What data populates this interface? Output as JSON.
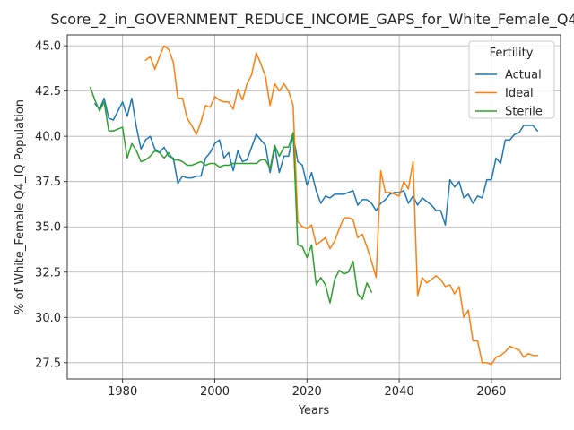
{
  "chart_data": {
    "type": "line",
    "title": "Score_2_in_GOVERNMENT_REDUCE_INCOME_GAPS_for_White_Female_Q4",
    "xlabel": "Years",
    "ylabel": "% of White_Female Q4_IQ Population",
    "xlim": [
      1968,
      2075
    ],
    "ylim": [
      26.6,
      45.6
    ],
    "xticks": [
      1980,
      2000,
      2020,
      2040,
      2060
    ],
    "yticks": [
      27.5,
      30.0,
      32.5,
      35.0,
      37.5,
      40.0,
      42.5,
      45.0
    ],
    "xtick_labels": [
      "1980",
      "2000",
      "2020",
      "2040",
      "2060"
    ],
    "ytick_labels": [
      "27.5",
      "30.0",
      "32.5",
      "35.0",
      "37.5",
      "40.0",
      "42.5",
      "45.0"
    ],
    "grid": true,
    "legend": {
      "title": "Fertility",
      "placement": "top-right"
    },
    "series": [
      {
        "name": "Actual",
        "color": "#1f77b4",
        "x": [
          1974,
          1975,
          1976,
          1977,
          1978,
          1979,
          1980,
          1981,
          1982,
          1983,
          1984,
          1985,
          1986,
          1987,
          1988,
          1989,
          1990,
          1991,
          1992,
          1993,
          1994,
          1995,
          1996,
          1997,
          1998,
          1999,
          2000,
          2001,
          2002,
          2003,
          2004,
          2005,
          2006,
          2007,
          2008,
          2009,
          2010,
          2011,
          2012,
          2013,
          2014,
          2015,
          2016,
          2017,
          2018,
          2019,
          2020,
          2021,
          2022,
          2023,
          2024,
          2025,
          2026,
          2027,
          2028,
          2029,
          2030,
          2031,
          2032,
          2033,
          2034,
          2035,
          2036,
          2037,
          2038,
          2039,
          2040,
          2041,
          2042,
          2043,
          2044,
          2045,
          2046,
          2047,
          2048,
          2049,
          2050,
          2051,
          2052,
          2053,
          2054,
          2055,
          2056,
          2057,
          2058,
          2059,
          2060,
          2061,
          2062,
          2063,
          2064,
          2065,
          2066,
          2067,
          2068,
          2069,
          2070
        ],
        "values": [
          41.8,
          41.5,
          42.1,
          41.0,
          40.9,
          41.4,
          41.9,
          41.1,
          42.1,
          40.5,
          39.3,
          39.8,
          40.0,
          39.3,
          39.1,
          39.4,
          38.9,
          38.8,
          37.4,
          37.8,
          37.7,
          37.7,
          37.8,
          37.8,
          38.8,
          39.1,
          39.6,
          39.8,
          38.8,
          39.1,
          38.1,
          39.2,
          38.6,
          38.7,
          39.4,
          40.1,
          39.8,
          39.5,
          38.0,
          39.4,
          38.0,
          38.9,
          38.9,
          40.1,
          38.6,
          38.4,
          37.3,
          38.0,
          37.0,
          36.3,
          36.7,
          36.6,
          36.8,
          36.8,
          36.8,
          36.9,
          37.0,
          36.2,
          36.5,
          36.5,
          36.3,
          35.9,
          36.3,
          36.5,
          36.8,
          36.9,
          36.9,
          37.0,
          36.3,
          36.7,
          36.2,
          36.6,
          36.4,
          36.2,
          35.9,
          35.9,
          35.1,
          37.6,
          37.2,
          37.5,
          36.6,
          36.8,
          36.3,
          36.7,
          36.6,
          37.6,
          37.6,
          38.8,
          38.5,
          39.8,
          39.8,
          40.1,
          40.2,
          40.6,
          40.6,
          40.6,
          40.3
        ]
      },
      {
        "name": "Ideal",
        "color": "#ff7f0e",
        "x": [
          1985,
          1986,
          1987,
          1988,
          1989,
          1990,
          1991,
          1992,
          1993,
          1994,
          1995,
          1996,
          1997,
          1998,
          1999,
          2000,
          2001,
          2002,
          2003,
          2004,
          2005,
          2006,
          2007,
          2008,
          2009,
          2010,
          2011,
          2012,
          2013,
          2014,
          2015,
          2016,
          2017,
          2018,
          2019,
          2020,
          2021,
          2022,
          2023,
          2024,
          2025,
          2026,
          2027,
          2028,
          2029,
          2030,
          2031,
          2032,
          2033,
          2034,
          2035,
          2036,
          2037,
          2038,
          2039,
          2040,
          2041,
          2042,
          2043,
          2044,
          2045,
          2046,
          2047,
          2048,
          2049,
          2050,
          2051,
          2052,
          2053,
          2054,
          2055,
          2056,
          2057,
          2058,
          2059,
          2060,
          2061,
          2062,
          2063,
          2064,
          2065,
          2066,
          2067,
          2068,
          2069,
          2070
        ],
        "values": [
          44.2,
          44.4,
          43.7,
          44.4,
          45.0,
          44.8,
          44.1,
          42.1,
          42.1,
          41.0,
          40.6,
          40.1,
          40.8,
          41.7,
          41.6,
          42.2,
          42.0,
          41.9,
          41.9,
          41.5,
          42.6,
          42.0,
          42.9,
          43.4,
          44.6,
          44.0,
          43.3,
          41.7,
          42.9,
          42.5,
          42.9,
          42.5,
          41.7,
          35.3,
          35.0,
          34.9,
          35.1,
          34.0,
          34.2,
          34.4,
          33.8,
          34.2,
          34.9,
          35.5,
          35.5,
          35.4,
          34.4,
          34.6,
          33.9,
          33.1,
          32.2,
          38.1,
          36.9,
          36.9,
          36.8,
          36.7,
          37.5,
          37.1,
          38.6,
          31.2,
          32.2,
          31.9,
          32.1,
          32.3,
          32.1,
          31.7,
          31.8,
          31.3,
          31.7,
          30.0,
          30.4,
          28.7,
          28.7,
          27.5,
          27.5,
          27.4,
          27.8,
          27.9,
          28.1,
          28.4,
          28.3,
          28.2,
          27.8,
          28.0,
          27.9,
          27.9
        ]
      },
      {
        "name": "Sterile",
        "color": "#2ca02c",
        "x": [
          1973,
          1974,
          1975,
          1976,
          1977,
          1978,
          1979,
          1980,
          1981,
          1982,
          1983,
          1984,
          1985,
          1986,
          1987,
          1988,
          1989,
          1990,
          1991,
          1992,
          1993,
          1994,
          1995,
          1996,
          1997,
          1998,
          1999,
          2000,
          2001,
          2002,
          2003,
          2004,
          2005,
          2006,
          2007,
          2008,
          2009,
          2010,
          2011,
          2012,
          2013,
          2014,
          2015,
          2016,
          2017,
          2018,
          2019,
          2020,
          2021,
          2022,
          2023,
          2024,
          2025,
          2026,
          2027,
          2028,
          2029,
          2030,
          2031,
          2032,
          2033,
          2034
        ],
        "values": [
          42.7,
          42.0,
          41.4,
          41.9,
          40.3,
          40.3,
          40.4,
          40.5,
          38.8,
          39.6,
          39.2,
          38.6,
          38.7,
          38.9,
          39.2,
          39.1,
          38.8,
          39.1,
          38.7,
          38.7,
          38.6,
          38.4,
          38.4,
          38.5,
          38.6,
          38.4,
          38.5,
          38.5,
          38.3,
          38.4,
          38.4,
          38.5,
          38.5,
          38.5,
          38.5,
          38.5,
          38.5,
          38.7,
          38.7,
          38.2,
          39.5,
          38.9,
          39.4,
          39.4,
          40.2,
          34.0,
          33.9,
          33.3,
          34.0,
          31.8,
          32.2,
          31.8,
          30.8,
          32.1,
          32.6,
          32.4,
          32.5,
          33.1,
          31.3,
          31.0,
          31.9,
          31.4
        ]
      }
    ]
  }
}
